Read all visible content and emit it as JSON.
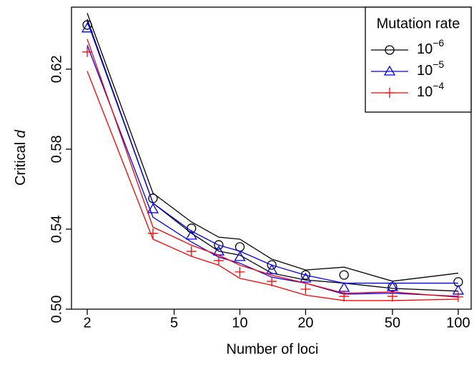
{
  "chart_data": {
    "type": "line",
    "xlabel": "Number of loci",
    "ylabel": "Critical",
    "ylabel_italic": "d",
    "x": [
      2,
      4,
      6,
      8,
      10,
      14,
      20,
      30,
      50,
      100
    ],
    "xlim": [
      1.694,
      114.6
    ],
    "xticks": [
      2,
      5,
      10,
      20,
      50,
      100
    ],
    "xlog": true,
    "ylim": [
      0.5,
      0.651
    ],
    "yticks": [
      {
        "value": 0.5,
        "label": "0.50"
      },
      0.54,
      0.58,
      0.62
    ],
    "legend_title": "Mutation rate",
    "legend_position": "top-right",
    "series": [
      {
        "name": "10",
        "exponent": "−6",
        "color": "#000000",
        "marker": "circle",
        "values": [
          0.6421,
          0.5554,
          0.5404,
          0.5321,
          0.5311,
          0.5221,
          0.5171,
          0.5171,
          0.5111,
          0.5136
        ],
        "upper": [
          0.648,
          0.558,
          0.5436,
          0.536,
          0.535,
          0.525,
          0.5196,
          0.521,
          0.514,
          0.518
        ],
        "lower": [
          0.645,
          0.553,
          0.538,
          0.529,
          0.527,
          0.518,
          0.5146,
          0.513,
          0.5104,
          0.509
        ]
      },
      {
        "name": "10",
        "exponent": "−5",
        "color": "#0000ff",
        "marker": "triangle",
        "values": [
          0.6404,
          0.55,
          0.5368,
          0.5289,
          0.5261,
          0.5196,
          0.5154,
          0.5107,
          0.5111,
          0.5093
        ],
        "upper": [
          0.644,
          0.553,
          0.539,
          0.532,
          0.529,
          0.522,
          0.517,
          0.513,
          0.513,
          0.513
        ],
        "lower": [
          0.632,
          0.546,
          0.5336,
          0.526,
          0.523,
          0.516,
          0.513,
          0.5075,
          0.508,
          0.5064
        ]
      },
      {
        "name": "10",
        "exponent": "−4",
        "color": "#ff0000",
        "marker": "plus",
        "values": [
          0.6286,
          0.5379,
          0.5289,
          0.5243,
          0.5186,
          0.5139,
          0.51,
          0.5064,
          0.5064,
          0.5061
        ],
        "upper": [
          0.635,
          0.541,
          0.532,
          0.527,
          0.522,
          0.517,
          0.513,
          0.508,
          0.5086,
          0.506
        ],
        "lower": [
          0.619,
          0.535,
          0.5264,
          0.522,
          0.5154,
          0.512,
          0.507,
          0.5043,
          0.5043,
          0.505
        ]
      }
    ]
  }
}
